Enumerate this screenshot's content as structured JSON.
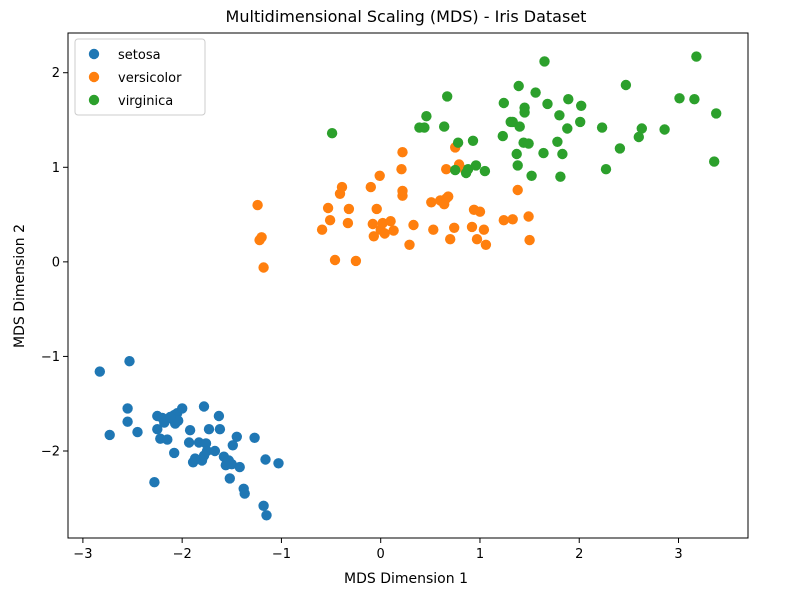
{
  "chart_data": {
    "type": "scatter",
    "title": "Multidimensional Scaling (MDS) - Iris Dataset",
    "xlabel": "MDS Dimension 1",
    "ylabel": "MDS Dimension 2",
    "xlim": [
      -3.15,
      3.7
    ],
    "ylim": [
      -2.92,
      2.42
    ],
    "xticks": [
      -3,
      -2,
      -1,
      0,
      1,
      2,
      3
    ],
    "yticks": [
      -2,
      -1,
      0,
      1,
      2
    ],
    "xtick_labels": [
      "−3",
      "−2",
      "−1",
      "0",
      "1",
      "2",
      "3"
    ],
    "ytick_labels": [
      "−2",
      "−1",
      "0",
      "1",
      "2"
    ],
    "grid": false,
    "legend_position": "top-left",
    "series": [
      {
        "name": "setosa",
        "color": "#1f77b4",
        "points": [
          [
            -2.83,
            -1.16
          ],
          [
            -2.53,
            -1.05
          ],
          [
            -2.73,
            -1.83
          ],
          [
            -2.55,
            -1.55
          ],
          [
            -2.55,
            -1.69
          ],
          [
            -2.45,
            -1.8
          ],
          [
            -2.28,
            -2.33
          ],
          [
            -2.25,
            -1.63
          ],
          [
            -2.25,
            -1.77
          ],
          [
            -2.22,
            -1.87
          ],
          [
            -2.2,
            -1.65
          ],
          [
            -2.18,
            -1.7
          ],
          [
            -2.15,
            -1.88
          ],
          [
            -2.1,
            -1.66
          ],
          [
            -2.08,
            -1.62
          ],
          [
            -2.07,
            -1.71
          ],
          [
            -2.05,
            -1.6
          ],
          [
            -2.04,
            -1.68
          ],
          [
            -2.08,
            -2.02
          ],
          [
            -2.0,
            -1.55
          ],
          [
            -1.93,
            -1.91
          ],
          [
            -1.92,
            -1.78
          ],
          [
            -1.89,
            -2.12
          ],
          [
            -1.87,
            -2.08
          ],
          [
            -1.83,
            -1.91
          ],
          [
            -1.8,
            -2.1
          ],
          [
            -1.78,
            -2.05
          ],
          [
            -1.78,
            -1.53
          ],
          [
            -1.76,
            -1.92
          ],
          [
            -1.75,
            -2.0
          ],
          [
            -1.73,
            -1.77
          ],
          [
            -1.67,
            -2.0
          ],
          [
            -1.63,
            -1.63
          ],
          [
            -1.62,
            -1.77
          ],
          [
            -1.58,
            -2.06
          ],
          [
            -1.56,
            -2.15
          ],
          [
            -1.53,
            -2.1
          ],
          [
            -1.52,
            -2.29
          ],
          [
            -1.5,
            -2.14
          ],
          [
            -1.49,
            -1.94
          ],
          [
            -1.45,
            -1.85
          ],
          [
            -1.42,
            -2.17
          ],
          [
            -1.38,
            -2.4
          ],
          [
            -1.37,
            -2.45
          ],
          [
            -1.27,
            -1.86
          ],
          [
            -1.18,
            -2.58
          ],
          [
            -1.16,
            -2.09
          ],
          [
            -1.15,
            -2.68
          ],
          [
            -1.03,
            -2.13
          ],
          [
            -2.12,
            -1.64
          ]
        ]
      },
      {
        "name": "versicolor",
        "color": "#ff7f0e",
        "points": [
          [
            -1.24,
            0.6
          ],
          [
            -1.22,
            0.23
          ],
          [
            -1.2,
            0.26
          ],
          [
            -1.18,
            -0.06
          ],
          [
            -0.59,
            0.34
          ],
          [
            -0.53,
            0.57
          ],
          [
            -0.51,
            0.44
          ],
          [
            -0.46,
            0.02
          ],
          [
            -0.41,
            0.72
          ],
          [
            -0.39,
            0.79
          ],
          [
            -0.33,
            0.41
          ],
          [
            -0.32,
            0.56
          ],
          [
            -0.25,
            0.01
          ],
          [
            -0.1,
            0.79
          ],
          [
            -0.08,
            0.4
          ],
          [
            -0.07,
            0.27
          ],
          [
            -0.04,
            0.56
          ],
          [
            -0.01,
            0.91
          ],
          [
            0.0,
            0.34
          ],
          [
            0.02,
            0.41
          ],
          [
            0.04,
            0.3
          ],
          [
            0.1,
            0.43
          ],
          [
            0.13,
            0.33
          ],
          [
            0.21,
            0.98
          ],
          [
            0.22,
            1.16
          ],
          [
            0.22,
            0.7
          ],
          [
            0.22,
            0.75
          ],
          [
            0.29,
            0.18
          ],
          [
            0.33,
            0.39
          ],
          [
            0.51,
            0.63
          ],
          [
            0.53,
            0.34
          ],
          [
            0.6,
            0.65
          ],
          [
            0.64,
            0.61
          ],
          [
            0.66,
            0.67
          ],
          [
            0.66,
            0.98
          ],
          [
            0.68,
            0.69
          ],
          [
            0.7,
            0.24
          ],
          [
            0.74,
            0.36
          ],
          [
            0.75,
            1.21
          ],
          [
            0.79,
            1.03
          ],
          [
            0.85,
            0.97
          ],
          [
            0.92,
            0.37
          ],
          [
            0.94,
            0.55
          ],
          [
            0.97,
            0.24
          ],
          [
            1.0,
            0.53
          ],
          [
            1.04,
            0.34
          ],
          [
            1.06,
            0.18
          ],
          [
            1.24,
            0.44
          ],
          [
            1.33,
            0.45
          ],
          [
            1.38,
            0.76
          ],
          [
            1.49,
            0.48
          ],
          [
            1.5,
            0.23
          ]
        ]
      },
      {
        "name": "virginica",
        "color": "#2ca02c",
        "points": [
          [
            -0.49,
            1.36
          ],
          [
            0.39,
            1.42
          ],
          [
            0.44,
            1.42
          ],
          [
            0.46,
            1.54
          ],
          [
            0.64,
            1.43
          ],
          [
            0.67,
            1.75
          ],
          [
            0.75,
            0.97
          ],
          [
            0.78,
            1.26
          ],
          [
            0.86,
            0.94
          ],
          [
            0.88,
            0.98
          ],
          [
            0.93,
            1.28
          ],
          [
            0.96,
            1.02
          ],
          [
            1.05,
            0.96
          ],
          [
            1.23,
            1.33
          ],
          [
            1.24,
            1.68
          ],
          [
            1.33,
            1.48
          ],
          [
            1.37,
            1.14
          ],
          [
            1.38,
            1.02
          ],
          [
            1.39,
            1.86
          ],
          [
            1.4,
            1.43
          ],
          [
            1.44,
            1.26
          ],
          [
            1.45,
            1.63
          ],
          [
            1.45,
            1.58
          ],
          [
            1.49,
            1.25
          ],
          [
            1.52,
            0.91
          ],
          [
            1.56,
            1.79
          ],
          [
            1.64,
            1.15
          ],
          [
            1.65,
            2.12
          ],
          [
            1.68,
            1.67
          ],
          [
            1.78,
            1.27
          ],
          [
            1.8,
            1.55
          ],
          [
            1.81,
            0.9
          ],
          [
            1.83,
            1.14
          ],
          [
            1.88,
            1.41
          ],
          [
            1.89,
            1.72
          ],
          [
            2.01,
            1.48
          ],
          [
            2.02,
            1.65
          ],
          [
            2.23,
            1.42
          ],
          [
            2.27,
            0.98
          ],
          [
            2.41,
            1.2
          ],
          [
            2.47,
            1.87
          ],
          [
            2.6,
            1.32
          ],
          [
            2.63,
            1.41
          ],
          [
            2.86,
            1.4
          ],
          [
            3.01,
            1.73
          ],
          [
            3.16,
            1.72
          ],
          [
            3.18,
            2.17
          ],
          [
            3.36,
            1.06
          ],
          [
            3.38,
            1.57
          ],
          [
            1.31,
            1.48
          ]
        ]
      }
    ]
  }
}
